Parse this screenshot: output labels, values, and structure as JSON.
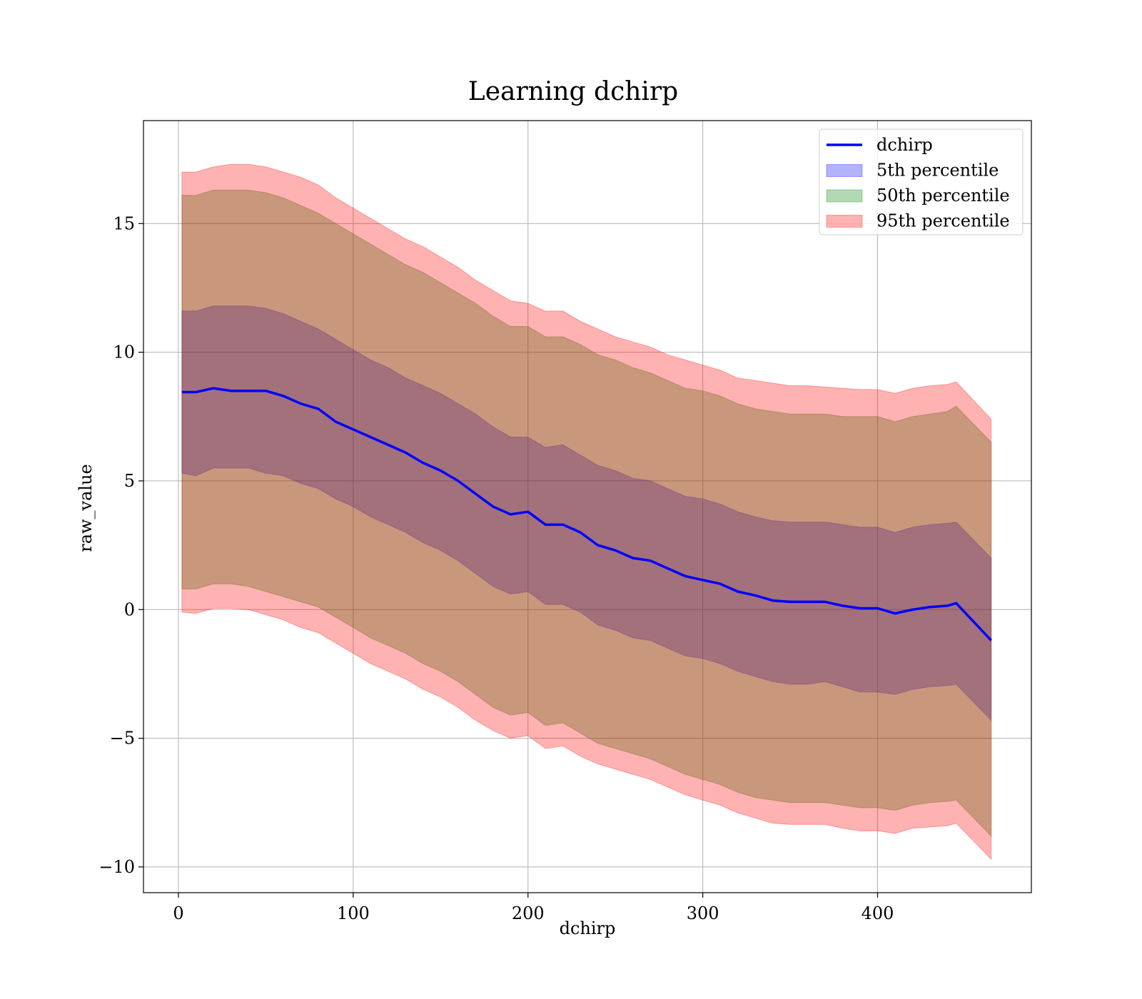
{
  "chart_data": {
    "type": "area",
    "title": "Learning dchirp",
    "xlabel": "dchirp",
    "ylabel": "raw_value",
    "xlim": [
      -20,
      488
    ],
    "ylim": [
      -11,
      19
    ],
    "xticks": [
      0,
      100,
      200,
      300,
      400
    ],
    "xtick_labels": [
      "0",
      "100",
      "200",
      "300",
      "400"
    ],
    "yticks": [
      -10,
      -5,
      0,
      5,
      10,
      15
    ],
    "ytick_labels": [
      "−10",
      "−5",
      "0",
      "5",
      "10",
      "15"
    ],
    "grid": true,
    "legend_position": "upper right",
    "x": [
      2,
      10,
      20,
      30,
      40,
      50,
      60,
      70,
      80,
      90,
      100,
      110,
      120,
      130,
      140,
      150,
      160,
      170,
      180,
      190,
      200,
      210,
      220,
      230,
      240,
      250,
      260,
      270,
      280,
      290,
      300,
      310,
      320,
      330,
      340,
      350,
      360,
      370,
      380,
      390,
      400,
      410,
      420,
      430,
      440,
      445,
      465
    ],
    "series": [
      {
        "name": "dchirp",
        "kind": "line",
        "color": "#0000ff",
        "values": [
          8.45,
          8.45,
          8.6,
          8.5,
          8.5,
          8.5,
          8.3,
          8.0,
          7.8,
          7.3,
          7.0,
          6.7,
          6.4,
          6.1,
          5.7,
          5.4,
          5.0,
          4.5,
          4.0,
          3.7,
          3.8,
          3.3,
          3.3,
          3.0,
          2.5,
          2.3,
          2.0,
          1.9,
          1.6,
          1.3,
          1.15,
          1.0,
          0.7,
          0.55,
          0.35,
          0.3,
          0.3,
          0.3,
          0.15,
          0.05,
          0.05,
          -0.15,
          0.0,
          0.1,
          0.15,
          0.25,
          -1.2
        ]
      },
      {
        "name": "5th percentile",
        "kind": "band",
        "color": "#0000ff",
        "lower": [
          5.3,
          5.2,
          5.5,
          5.5,
          5.5,
          5.3,
          5.2,
          4.9,
          4.7,
          4.3,
          4.0,
          3.6,
          3.3,
          3.0,
          2.6,
          2.3,
          1.9,
          1.4,
          0.9,
          0.6,
          0.7,
          0.2,
          0.2,
          -0.1,
          -0.6,
          -0.8,
          -1.1,
          -1.2,
          -1.5,
          -1.8,
          -1.9,
          -2.1,
          -2.4,
          -2.6,
          -2.8,
          -2.9,
          -2.9,
          -2.8,
          -3.0,
          -3.2,
          -3.2,
          -3.3,
          -3.1,
          -3.0,
          -2.95,
          -2.9,
          -4.3
        ],
        "upper": [
          11.6,
          11.6,
          11.8,
          11.8,
          11.8,
          11.7,
          11.5,
          11.2,
          10.9,
          10.5,
          10.1,
          9.7,
          9.4,
          9.0,
          8.7,
          8.4,
          8.0,
          7.6,
          7.1,
          6.7,
          6.7,
          6.3,
          6.4,
          6.0,
          5.6,
          5.4,
          5.1,
          5.0,
          4.7,
          4.4,
          4.3,
          4.1,
          3.8,
          3.6,
          3.45,
          3.4,
          3.4,
          3.4,
          3.3,
          3.2,
          3.2,
          3.0,
          3.2,
          3.3,
          3.35,
          3.4,
          2.0
        ]
      },
      {
        "name": "50th percentile",
        "kind": "band",
        "color": "#008000",
        "lower": [
          0.8,
          0.8,
          1.0,
          1.0,
          0.9,
          0.7,
          0.5,
          0.3,
          0.1,
          -0.3,
          -0.7,
          -1.1,
          -1.4,
          -1.7,
          -2.1,
          -2.4,
          -2.8,
          -3.3,
          -3.8,
          -4.1,
          -4.0,
          -4.5,
          -4.4,
          -4.8,
          -5.2,
          -5.4,
          -5.6,
          -5.8,
          -6.1,
          -6.4,
          -6.6,
          -6.8,
          -7.1,
          -7.3,
          -7.4,
          -7.5,
          -7.5,
          -7.5,
          -7.6,
          -7.7,
          -7.7,
          -7.8,
          -7.6,
          -7.5,
          -7.45,
          -7.4,
          -8.8
        ],
        "upper": [
          16.1,
          16.1,
          16.3,
          16.3,
          16.3,
          16.2,
          16.0,
          15.7,
          15.4,
          15.0,
          14.6,
          14.2,
          13.8,
          13.4,
          13.1,
          12.7,
          12.3,
          11.9,
          11.4,
          11.0,
          11.0,
          10.6,
          10.6,
          10.3,
          9.9,
          9.7,
          9.4,
          9.2,
          8.9,
          8.6,
          8.5,
          8.3,
          8.0,
          7.8,
          7.7,
          7.6,
          7.6,
          7.6,
          7.5,
          7.5,
          7.5,
          7.3,
          7.5,
          7.6,
          7.7,
          7.9,
          6.5
        ]
      },
      {
        "name": "95th percentile",
        "kind": "band",
        "color": "#ff0000",
        "lower": [
          -0.1,
          -0.15,
          0.05,
          0.05,
          0.0,
          -0.2,
          -0.4,
          -0.7,
          -0.9,
          -1.3,
          -1.7,
          -2.1,
          -2.4,
          -2.7,
          -3.1,
          -3.4,
          -3.8,
          -4.3,
          -4.7,
          -5.0,
          -4.9,
          -5.4,
          -5.3,
          -5.7,
          -6.0,
          -6.2,
          -6.4,
          -6.6,
          -6.9,
          -7.2,
          -7.4,
          -7.6,
          -7.9,
          -8.1,
          -8.3,
          -8.35,
          -8.35,
          -8.35,
          -8.5,
          -8.6,
          -8.6,
          -8.7,
          -8.5,
          -8.45,
          -8.4,
          -8.3,
          -9.7
        ],
        "upper": [
          17.0,
          17.0,
          17.2,
          17.3,
          17.3,
          17.2,
          17.0,
          16.8,
          16.5,
          16.0,
          15.6,
          15.2,
          14.8,
          14.4,
          14.1,
          13.7,
          13.3,
          12.8,
          12.4,
          12.0,
          11.9,
          11.6,
          11.6,
          11.2,
          10.9,
          10.6,
          10.4,
          10.2,
          9.9,
          9.7,
          9.5,
          9.3,
          9.0,
          8.9,
          8.8,
          8.7,
          8.7,
          8.65,
          8.6,
          8.55,
          8.55,
          8.4,
          8.6,
          8.7,
          8.75,
          8.85,
          7.4
        ]
      }
    ]
  }
}
